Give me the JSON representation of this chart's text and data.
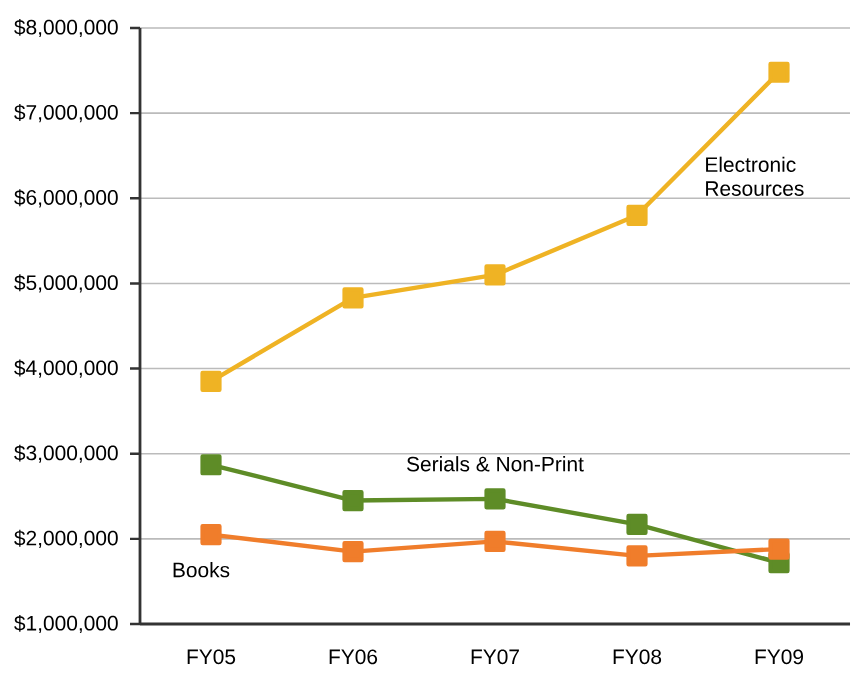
{
  "chart_data": {
    "type": "line",
    "categories": [
      "FY05",
      "FY06",
      "FY07",
      "FY08",
      "FY09"
    ],
    "series": [
      {
        "name": "Electronic Resources",
        "color": "#efb324",
        "values": [
          3850000,
          4830000,
          5100000,
          5800000,
          7480000
        ]
      },
      {
        "name": "Serials & Non-Print",
        "color": "#5e8c27",
        "values": [
          2870000,
          2450000,
          2470000,
          2170000,
          1720000
        ]
      },
      {
        "name": "Books",
        "color": "#f07d2b",
        "values": [
          2050000,
          1850000,
          1970000,
          1800000,
          1880000
        ]
      }
    ],
    "ylim": [
      1000000,
      8000000
    ],
    "yticks": [
      {
        "value": 1000000,
        "label": "$1,000,000"
      },
      {
        "value": 2000000,
        "label": "$2,000,000"
      },
      {
        "value": 3000000,
        "label": "$3,000,000"
      },
      {
        "value": 4000000,
        "label": "$4,000,000"
      },
      {
        "value": 5000000,
        "label": "$5,000,000"
      },
      {
        "value": 6000000,
        "label": "$6,000,000"
      },
      {
        "value": 7000000,
        "label": "$7,000,000"
      },
      {
        "value": 8000000,
        "label": "$8,000,000"
      }
    ],
    "grid": "y",
    "legend": false,
    "marker": "square",
    "line_style": "solid"
  }
}
